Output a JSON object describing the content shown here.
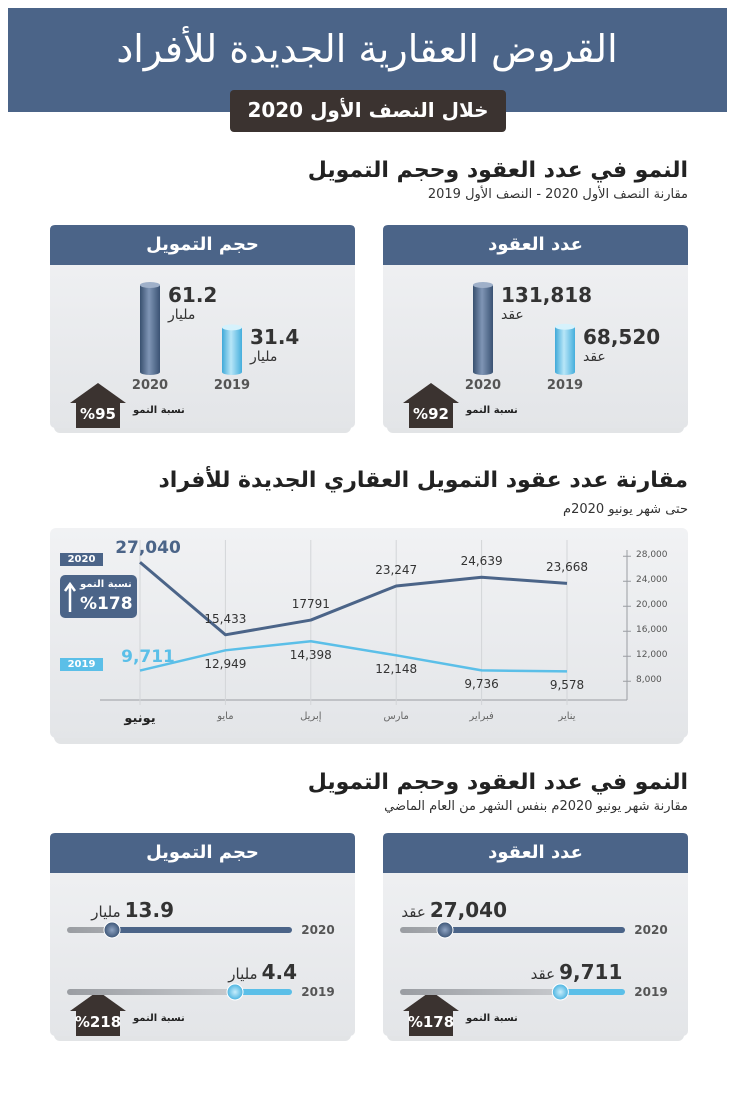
{
  "header": {
    "title": "القروض العقارية الجديدة للأفراد",
    "subtitle": "خلال النصف الأول 2020"
  },
  "section1": {
    "title": "النمو في عدد العقود وحجم التمويل",
    "subtitle": "مقارنة النصف الأول 2020 - النصف الأول 2019",
    "cards": [
      {
        "title": "عدد العقود",
        "items": [
          {
            "year": "2020",
            "value": 131818,
            "label": "131,818",
            "unit": "عقد"
          },
          {
            "year": "2019",
            "value": 68520,
            "label": "68,520",
            "unit": "عقد"
          }
        ],
        "growth_label": "نسبة النمو",
        "growth": "%92"
      },
      {
        "title": "حجم التمويل",
        "items": [
          {
            "year": "2020",
            "value": 61.2,
            "unit": "مليار"
          },
          {
            "year": "2019",
            "value": 31.4,
            "unit": "مليار"
          }
        ],
        "growth_label": "نسبة النمو",
        "growth": "%95"
      }
    ]
  },
  "chart_data": {
    "type": "line",
    "title": "مقارنة عدد عقود التمويل العقاري الجديدة للأفراد",
    "subtitle": "حتى شهر يونيو 2020م",
    "categories": [
      "يناير",
      "فبراير",
      "مارس",
      "إبريل",
      "مايو",
      "يونيو"
    ],
    "series": [
      {
        "name": "2020",
        "color": "#4b6488",
        "values": [
          23668,
          24639,
          23247,
          17791,
          15433,
          27040
        ],
        "value_labels": [
          "23,668",
          "24,639",
          "23,247",
          "17791",
          "15,433",
          "27,040"
        ]
      },
      {
        "name": "2019",
        "color": "#5bbfe8",
        "values": [
          9578,
          9736,
          12148,
          14398,
          12949,
          9711
        ],
        "value_labels": [
          "9,578",
          "9,736",
          "12,148",
          "14,398",
          "12,949",
          "9,711"
        ]
      }
    ],
    "ylim": [
      5000,
      29000
    ],
    "yticks": [
      {
        "value": 8000,
        "label": "8,000"
      },
      {
        "value": 12000,
        "label": "12,000"
      },
      {
        "value": 16000,
        "label": "16,000"
      },
      {
        "value": 20000,
        "label": "20,000"
      },
      {
        "value": 24000,
        "label": "24,000"
      },
      {
        "value": 28000,
        "label": "28,000"
      }
    ],
    "growth_label": "نسبة النمو",
    "growth": "%178"
  },
  "section3": {
    "title": "النمو في عدد العقود وحجم التمويل",
    "subtitle": "مقارنة شهر يونيو 2020م بنفس الشهر من العام الماضي",
    "cards": [
      {
        "title": "عدد العقود",
        "items": [
          {
            "year": "2020",
            "value": 27040,
            "label": "27,040",
            "unit": "عقد"
          },
          {
            "year": "2019",
            "value": 9711,
            "label": "9,711",
            "unit": "عقد"
          }
        ],
        "growth_label": "نسبة النمو",
        "growth": "%178"
      },
      {
        "title": "حجم التمويل",
        "items": [
          {
            "year": "2020",
            "value": 13.9,
            "unit": "مليار"
          },
          {
            "year": "2019",
            "value": 4.4,
            "unit": "مليار"
          }
        ],
        "growth_label": "نسبة النمو",
        "growth": "%218"
      }
    ]
  }
}
